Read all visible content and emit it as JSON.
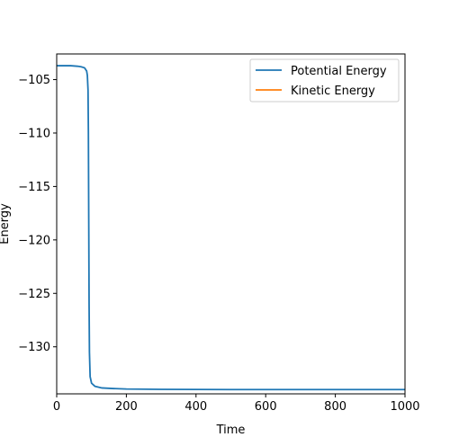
{
  "chart_data": {
    "type": "line",
    "xlabel": "Time",
    "ylabel": "Energy",
    "xlim": [
      0,
      1000
    ],
    "ylim": [
      -134.4,
      -102.6
    ],
    "xticks": [
      0,
      200,
      400,
      600,
      800,
      1000
    ],
    "xtick_labels": [
      "0",
      "200",
      "400",
      "600",
      "800",
      "1000"
    ],
    "yticks": [
      -105,
      -110,
      -115,
      -120,
      -125,
      -130
    ],
    "ytick_labels": [
      "−105",
      "−110",
      "−115",
      "−120",
      "−125",
      "−130"
    ],
    "grid": false,
    "legend_position": "top-right",
    "series": [
      {
        "name": "Potential Energy",
        "color": "#1f77b4",
        "x": [
          0,
          20,
          40,
          60,
          70,
          80,
          86,
          88,
          90,
          91,
          92,
          93,
          94,
          96,
          100,
          110,
          130,
          160,
          200,
          300,
          400,
          500,
          600,
          700,
          800,
          900,
          1000
        ],
        "y": [
          -103.7,
          -103.7,
          -103.7,
          -103.75,
          -103.8,
          -103.9,
          -104.2,
          -104.6,
          -106.0,
          -110.0,
          -118.0,
          -126.0,
          -130.5,
          -132.8,
          -133.4,
          -133.7,
          -133.85,
          -133.9,
          -133.95,
          -133.98,
          -133.99,
          -134.0,
          -134.0,
          -134.0,
          -134.0,
          -134.0,
          -134.0
        ]
      },
      {
        "name": "Kinetic Energy",
        "color": "#ff7f0e",
        "x": [],
        "y": []
      }
    ]
  }
}
